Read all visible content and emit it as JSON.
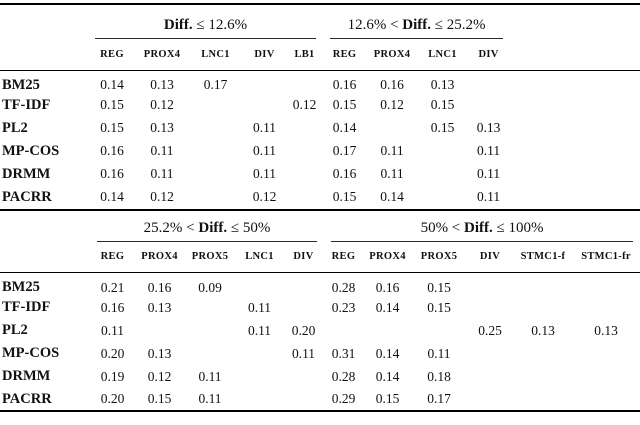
{
  "figure": {
    "tables": [
      {
        "name": "upper",
        "groups": [
          {
            "pre": "",
            "bold": "Diff.",
            "post": " ≤ 12.6%",
            "columns": [
              "REG",
              "PROX4",
              "LNC1",
              "DIV",
              "LB1"
            ]
          },
          {
            "pre": "12.6% < ",
            "bold": "Diff.",
            "post": " ≤ 25.2%",
            "columns": [
              "REG",
              "PROX4",
              "LNC1",
              "DIV"
            ]
          }
        ],
        "rows": [
          {
            "label": "BM25",
            "cells": [
              "0.14",
              "0.13",
              "0.17",
              "",
              "",
              "0.16",
              "0.16",
              "0.13",
              ""
            ]
          },
          {
            "label": "TF-IDF",
            "cells": [
              "0.15",
              "0.12",
              "",
              "",
              "0.12",
              "0.15",
              "0.12",
              "0.15",
              ""
            ]
          },
          {
            "label": "PL2",
            "cells": [
              "0.15",
              "0.13",
              "",
              "0.11",
              "",
              "0.14",
              "",
              "0.15",
              "0.13"
            ]
          },
          {
            "label": "MP-COS",
            "cells": [
              "0.16",
              "0.11",
              "",
              "0.11",
              "",
              "0.17",
              "0.11",
              "",
              "0.11"
            ]
          },
          {
            "label": "DRMM",
            "cells": [
              "0.16",
              "0.11",
              "",
              "0.11",
              "",
              "0.16",
              "0.11",
              "",
              "0.11"
            ]
          },
          {
            "label": "PACRR",
            "cells": [
              "0.14",
              "0.12",
              "",
              "0.12",
              "",
              "0.15",
              "0.14",
              "",
              "0.11"
            ]
          }
        ]
      },
      {
        "name": "lower",
        "groups": [
          {
            "pre": "25.2% < ",
            "bold": "Diff.",
            "post": " ≤ 50%",
            "columns": [
              "REG",
              "PROX4",
              "PROX5",
              "LNC1",
              "DIV"
            ]
          },
          {
            "pre": "50% < ",
            "bold": "Diff.",
            "post": " ≤ 100%",
            "columns": [
              "REG",
              "PROX4",
              "PROX5",
              "DIV",
              "STMC1-f",
              "STMC1-fr"
            ]
          }
        ],
        "rows": [
          {
            "label": "BM25",
            "cells": [
              "0.21",
              "0.16",
              "0.09",
              "",
              "",
              "0.28",
              "0.16",
              "0.15",
              "",
              "",
              ""
            ]
          },
          {
            "label": "TF-IDF",
            "cells": [
              "0.16",
              "0.13",
              "",
              "0.11",
              "",
              "0.23",
              "0.14",
              "0.15",
              "",
              "",
              ""
            ]
          },
          {
            "label": "PL2",
            "cells": [
              "0.11",
              "",
              "",
              "0.11",
              "0.20",
              "",
              "",
              "",
              "0.25",
              "0.13",
              "0.13"
            ]
          },
          {
            "label": "MP-COS",
            "cells": [
              "0.20",
              "0.13",
              "",
              "",
              "0.11",
              "0.31",
              "0.14",
              "0.11",
              "",
              "",
              ""
            ]
          },
          {
            "label": "DRMM",
            "cells": [
              "0.19",
              "0.12",
              "0.11",
              "",
              "",
              "0.28",
              "0.14",
              "0.18",
              "",
              "",
              ""
            ]
          },
          {
            "label": "PACRR",
            "cells": [
              "0.20",
              "0.15",
              "0.11",
              "",
              "",
              "0.29",
              "0.15",
              "0.17",
              "",
              "",
              ""
            ]
          }
        ]
      }
    ]
  }
}
